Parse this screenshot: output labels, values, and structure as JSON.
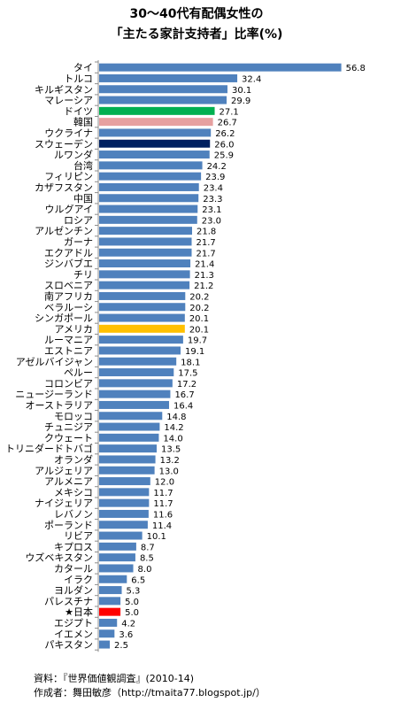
{
  "chart_data": {
    "type": "bar",
    "orientation": "horizontal",
    "title": [
      "30～40代有配偶女性の",
      "「主たる家計支持者」比率(%)"
    ],
    "categories": [
      "タイ",
      "トルコ",
      "キルギスタン",
      "マレーシア",
      "ドイツ",
      "韓国",
      "ウクライナ",
      "スウェーデン",
      "ルワンダ",
      "台湾",
      "フィリピン",
      "カザフスタン",
      "中国",
      "ウルグアイ",
      "ロシア",
      "アルゼンチン",
      "ガーナ",
      "エクアドル",
      "ジンバブエ",
      "チリ",
      "スロベニア",
      "南アフリカ",
      "ベラルーシ",
      "シンガポール",
      "アメリカ",
      "ルーマニア",
      "エストニア",
      "アゼルバイジャン",
      "ペルー",
      "コロンビア",
      "ニュージーランド",
      "オーストラリア",
      "モロッコ",
      "チュニジア",
      "クウェート",
      "トリニダードトバゴ",
      "オランダ",
      "アルジェリア",
      "アルメニア",
      "メキシコ",
      "ナイジェリア",
      "レバノン",
      "ポーランド",
      "リビア",
      "キプロス",
      "ウズベキスタン",
      "カタール",
      "イラク",
      "ヨルダン",
      "パレスチナ",
      "★日本",
      "エジプト",
      "イエメン",
      "パキスタン"
    ],
    "values": [
      56.8,
      32.4,
      30.1,
      29.9,
      27.1,
      26.7,
      26.2,
      26.0,
      25.9,
      24.2,
      23.9,
      23.4,
      23.3,
      23.1,
      23.0,
      21.8,
      21.7,
      21.7,
      21.4,
      21.3,
      21.2,
      20.2,
      20.2,
      20.1,
      20.1,
      19.7,
      19.1,
      18.1,
      17.5,
      17.2,
      16.7,
      16.4,
      14.8,
      14.2,
      14.0,
      13.5,
      13.2,
      13.0,
      12.0,
      11.7,
      11.7,
      11.6,
      11.4,
      10.1,
      8.7,
      8.5,
      8.0,
      6.5,
      5.3,
      5.0,
      5.0,
      4.2,
      3.6,
      2.5
    ],
    "xlim": [
      0,
      60
    ],
    "grid": false,
    "colors": {
      "default": "#4f81bd",
      "ドイツ": "#00b050",
      "韓国": "#e6a0a0",
      "スウェーデン": "#002060",
      "アメリカ": "#ffc000",
      "★日本": "#ff0000"
    }
  },
  "footer": {
    "source": "資料：『世界価値観調査』(2010-14)",
    "author": "作成者：舞田敏彦（http://tmaita77.blogspot.jp/）"
  }
}
